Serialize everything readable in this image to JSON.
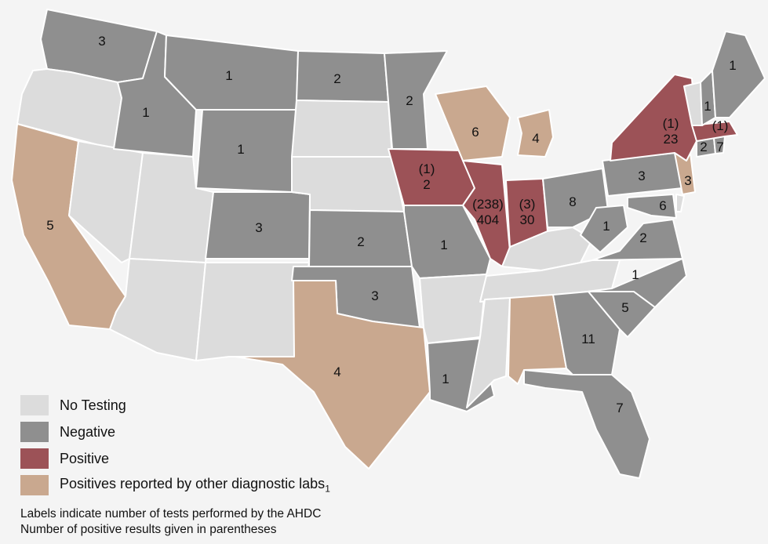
{
  "colors": {
    "no_testing": "#dcdcdc",
    "negative": "#8f8f8f",
    "positive": "#9c5257",
    "other_labs": "#c9a88f"
  },
  "legend": [
    {
      "key": "no_testing",
      "label": "No Testing"
    },
    {
      "key": "negative",
      "label": "Negative"
    },
    {
      "key": "positive",
      "label": "Positive"
    },
    {
      "key": "other_labs",
      "label": "Positives reported by other diagnostic labs",
      "sub": "1"
    }
  ],
  "notes": {
    "line1": "Labels indicate number of tests performed by the AHDC",
    "line2": "Number of positive results given in parentheses"
  },
  "states": [
    {
      "code": "WA",
      "status": "negative",
      "tests": "3"
    },
    {
      "code": "OR",
      "status": "no_testing",
      "tests": ""
    },
    {
      "code": "CA",
      "status": "other_labs",
      "tests": "5"
    },
    {
      "code": "NV",
      "status": "no_testing",
      "tests": ""
    },
    {
      "code": "ID",
      "status": "negative",
      "tests": "1"
    },
    {
      "code": "MT",
      "status": "negative",
      "tests": "1"
    },
    {
      "code": "WY",
      "status": "negative",
      "tests": "1"
    },
    {
      "code": "UT",
      "status": "no_testing",
      "tests": ""
    },
    {
      "code": "AZ",
      "status": "no_testing",
      "tests": ""
    },
    {
      "code": "CO",
      "status": "negative",
      "tests": "3"
    },
    {
      "code": "NM",
      "status": "no_testing",
      "tests": ""
    },
    {
      "code": "ND",
      "status": "negative",
      "tests": "2"
    },
    {
      "code": "SD",
      "status": "no_testing",
      "tests": ""
    },
    {
      "code": "NE",
      "status": "no_testing",
      "tests": ""
    },
    {
      "code": "KS",
      "status": "negative",
      "tests": "2"
    },
    {
      "code": "OK",
      "status": "negative",
      "tests": "3"
    },
    {
      "code": "TX",
      "status": "other_labs",
      "tests": "4"
    },
    {
      "code": "MN",
      "status": "negative",
      "tests": "2"
    },
    {
      "code": "IA",
      "status": "positive",
      "tests": "2",
      "positives": "(1)"
    },
    {
      "code": "MO",
      "status": "negative",
      "tests": "1"
    },
    {
      "code": "AR",
      "status": "no_testing",
      "tests": ""
    },
    {
      "code": "LA",
      "status": "negative",
      "tests": "1"
    },
    {
      "code": "WI",
      "status": "other_labs",
      "tests": "6"
    },
    {
      "code": "IL",
      "status": "positive",
      "tests": "404",
      "positives": "(238)"
    },
    {
      "code": "MI",
      "status": "other_labs",
      "tests": "4"
    },
    {
      "code": "IN",
      "status": "positive",
      "tests": "30",
      "positives": "(3)"
    },
    {
      "code": "OH",
      "status": "negative",
      "tests": "8"
    },
    {
      "code": "KY",
      "status": "no_testing",
      "tests": ""
    },
    {
      "code": "TN",
      "status": "no_testing",
      "tests": ""
    },
    {
      "code": "MS",
      "status": "no_testing",
      "tests": ""
    },
    {
      "code": "AL",
      "status": "other_labs",
      "tests": ""
    },
    {
      "code": "GA",
      "status": "negative",
      "tests": "11"
    },
    {
      "code": "FL",
      "status": "negative",
      "tests": "7"
    },
    {
      "code": "SC",
      "status": "negative",
      "tests": "5"
    },
    {
      "code": "NC",
      "status": "negative",
      "tests": "1"
    },
    {
      "code": "VA",
      "status": "negative",
      "tests": "2"
    },
    {
      "code": "WV",
      "status": "negative",
      "tests": "1"
    },
    {
      "code": "PA",
      "status": "negative",
      "tests": "3"
    },
    {
      "code": "MD",
      "status": "negative",
      "tests": "6"
    },
    {
      "code": "DE",
      "status": "no_testing",
      "tests": ""
    },
    {
      "code": "NJ",
      "status": "other_labs",
      "tests": "3"
    },
    {
      "code": "NY",
      "status": "positive",
      "tests": "23",
      "positives": "(1)"
    },
    {
      "code": "CT",
      "status": "negative",
      "tests": "2"
    },
    {
      "code": "RI",
      "status": "negative",
      "tests": "7"
    },
    {
      "code": "MA",
      "status": "positive",
      "tests": "",
      "positives": "(1)"
    },
    {
      "code": "VT",
      "status": "no_testing",
      "tests": ""
    },
    {
      "code": "NH",
      "status": "negative",
      "tests": "1"
    },
    {
      "code": "ME",
      "status": "negative",
      "tests": "1"
    }
  ]
}
